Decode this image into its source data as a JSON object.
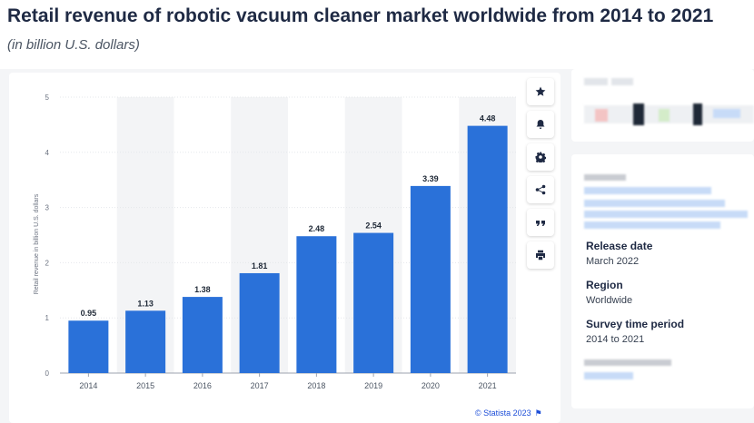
{
  "header": {
    "title": "Retail revenue of robotic vacuum cleaner market worldwide from 2014 to 2021",
    "subtitle": "(in billion U.S. dollars)"
  },
  "chart_data": {
    "type": "bar",
    "categories": [
      "2014",
      "2015",
      "2016",
      "2017",
      "2018",
      "2019",
      "2020",
      "2021"
    ],
    "values": [
      0.95,
      1.13,
      1.38,
      1.81,
      2.48,
      2.54,
      3.39,
      4.48
    ],
    "value_labels": [
      "0.95",
      "1.13",
      "1.38",
      "1.81",
      "2.48",
      "2.54",
      "3.39",
      "4.48"
    ],
    "ylabel": "Retail revenue in billion U.S. dollars",
    "xlabel": "",
    "ylim": [
      0,
      5
    ],
    "yticks": [
      "0",
      "1",
      "2",
      "3",
      "4",
      "5"
    ],
    "grid": true,
    "bar_color": "#2a71d9",
    "stripe_color": "#f3f4f6"
  },
  "toolbar": {
    "icons": [
      "star-icon",
      "bell-icon",
      "gear-icon",
      "share-icon",
      "quote-icon",
      "print-icon"
    ]
  },
  "credit": {
    "text": "© Statista 2023"
  },
  "details": {
    "release_label": "Release date",
    "release_value": "March 2022",
    "region_label": "Region",
    "region_value": "Worldwide",
    "survey_label": "Survey time period",
    "survey_value": "2014 to 2021"
  }
}
